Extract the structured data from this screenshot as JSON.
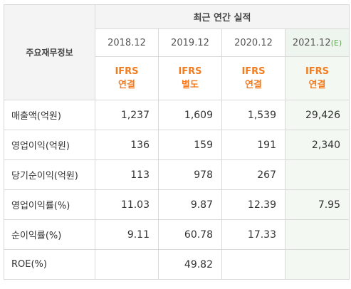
{
  "header": {
    "label": "주요재무정보",
    "group_title": "최근 연간 실적"
  },
  "columns": [
    {
      "year": "2018.12",
      "estimate_mark": "",
      "type_line1": "IFRS",
      "type_line2": "연결"
    },
    {
      "year": "2019.12",
      "estimate_mark": "",
      "type_line1": "IFRS",
      "type_line2": "별도"
    },
    {
      "year": "2020.12",
      "estimate_mark": "",
      "type_line1": "IFRS",
      "type_line2": "연결"
    },
    {
      "year": "2021.12",
      "estimate_mark": "(E)",
      "type_line1": "IFRS",
      "type_line2": "연결"
    }
  ],
  "rows": [
    {
      "label": "매출액(억원)",
      "values": [
        "1,237",
        "1,609",
        "1,539",
        "29,426"
      ]
    },
    {
      "label": "영업이익(억원)",
      "values": [
        "136",
        "159",
        "191",
        "2,340"
      ]
    },
    {
      "label": "당기순이익(억원)",
      "values": [
        "113",
        "978",
        "267",
        ""
      ]
    },
    {
      "label": "영업이익률(%)",
      "values": [
        "11.03",
        "9.87",
        "12.39",
        "7.95"
      ]
    },
    {
      "label": "순이익률(%)",
      "values": [
        "9.11",
        "60.78",
        "17.33",
        ""
      ]
    },
    {
      "label": "ROE(%)",
      "values": [
        "",
        "49.82",
        "",
        ""
      ]
    }
  ],
  "colors": {
    "ifrs_orange": "#f47c20",
    "estimate_bg": "#f3f8f3",
    "header_bg": "#f4f4f4",
    "border": "#d9d9d9"
  }
}
